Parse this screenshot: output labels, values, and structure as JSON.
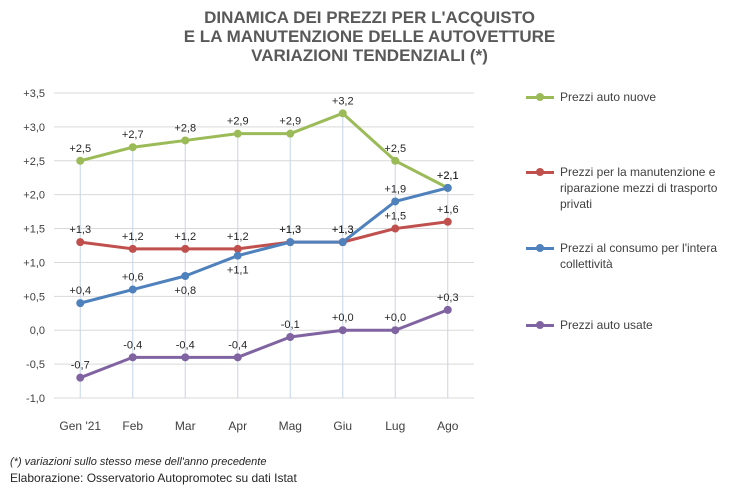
{
  "chart_data": {
    "type": "line",
    "title": [
      "DINAMICA DEI PREZZI PER L'ACQUISTO",
      "E LA MANUTENZIONE DELLE AUTOVETTURE",
      "VARIAZIONI TENDENZIALI (*)"
    ],
    "categories": [
      "Gen '21",
      "Feb",
      "Mar",
      "Apr",
      "Mag",
      "Giu",
      "Lug",
      "Ago"
    ],
    "ylim": [
      -1.0,
      3.5
    ],
    "yticks": [
      -1.0,
      -0.5,
      0.0,
      0.5,
      1.0,
      1.5,
      2.0,
      2.5,
      3.0,
      3.5
    ],
    "ytick_labels": [
      "-1,0",
      "-0,5",
      "0,0",
      "+0,5",
      "+1,0",
      "+1,5",
      "+2,0",
      "+2,5",
      "+3,0",
      "+3,5"
    ],
    "drop_lines": true,
    "series": [
      {
        "name": "Prezzi auto nuove",
        "color": "#9bbb59",
        "values": [
          2.5,
          2.7,
          2.8,
          2.9,
          2.9,
          3.2,
          2.5,
          2.1
        ],
        "labels": [
          "+2,5",
          "+2,7",
          "+2,8",
          "+2,9",
          "+2,9",
          "+3,2",
          "+2,5",
          "+2,1"
        ],
        "label_pos": [
          "above",
          "above",
          "above",
          "above",
          "above",
          "above",
          "above",
          "above"
        ]
      },
      {
        "name": "Prezzi per la manutenzione e riparazione mezzi di trasporto privati",
        "color": "#c0504d",
        "values": [
          1.3,
          1.2,
          1.2,
          1.2,
          1.3,
          1.3,
          1.5,
          1.6
        ],
        "labels": [
          "+1,3",
          "+1,2",
          "+1,2",
          "+1,2",
          "+1,3",
          "+1,3",
          "+1,5",
          "+1,6"
        ],
        "label_pos": [
          "above",
          "above",
          "above",
          "above",
          "above",
          "above",
          "above",
          "above"
        ]
      },
      {
        "name": "Prezzi al consumo per l'intera collettività",
        "color": "#4f81bd",
        "values": [
          0.4,
          0.6,
          0.8,
          1.1,
          1.3,
          1.3,
          1.9,
          2.1
        ],
        "labels": [
          "+0,4",
          "+0,6",
          "+0,8",
          "+1,1",
          "+1,3",
          "+1,3",
          "+1,9",
          "+2,1"
        ],
        "label_pos": [
          "above",
          "above",
          "below",
          "below",
          "above",
          "above",
          "above",
          "above"
        ]
      },
      {
        "name": "Prezzi auto usate",
        "color": "#8064a2",
        "values": [
          -0.7,
          -0.4,
          -0.4,
          -0.4,
          -0.1,
          0.0,
          0.0,
          0.3
        ],
        "labels": [
          "-0,7",
          "-0,4",
          "-0,4",
          "-0,4",
          "-0,1",
          "+0,0",
          "+0,0",
          "+0,3"
        ],
        "label_pos": [
          "above",
          "above",
          "above",
          "above",
          "above",
          "above",
          "above",
          "above"
        ]
      }
    ],
    "footnote": "(*) variazioni sullo stesso mese dell'anno precedente",
    "source": "Elaborazione: Osservatorio Autopromotec su dati Istat"
  }
}
